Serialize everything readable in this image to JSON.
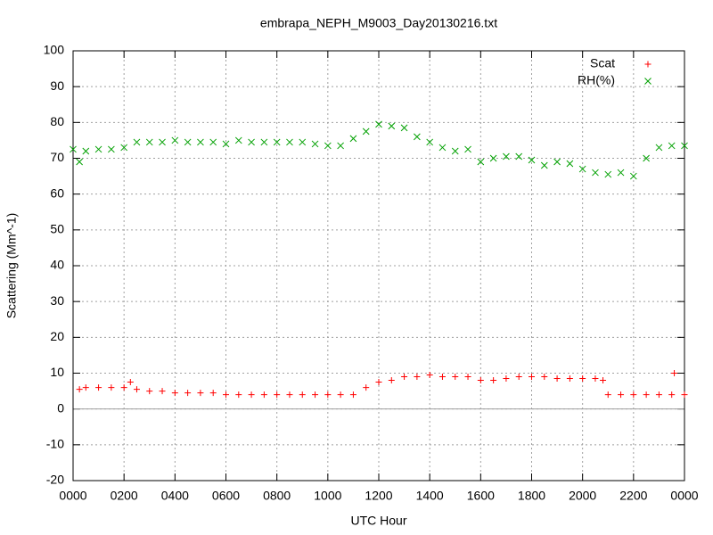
{
  "chart_data": {
    "type": "scatter",
    "title": "embrapa_NEPH_M9003_Day20130216.txt",
    "x_label": "UTC Hour",
    "y_label": "Scattering (Mm^-1)",
    "xlim": [
      0,
      24
    ],
    "xticks": [
      {
        "value": 0,
        "label": "0000"
      },
      {
        "value": 2,
        "label": "0200"
      },
      {
        "value": 4,
        "label": "0400"
      },
      {
        "value": 6,
        "label": "0600"
      },
      {
        "value": 8,
        "label": "0800"
      },
      {
        "value": 10,
        "label": "1000"
      },
      {
        "value": 12,
        "label": "1200"
      },
      {
        "value": 14,
        "label": "1400"
      },
      {
        "value": 16,
        "label": "1600"
      },
      {
        "value": 18,
        "label": "1800"
      },
      {
        "value": 20,
        "label": "2000"
      },
      {
        "value": 22,
        "label": "2200"
      },
      {
        "value": 24,
        "label": "0000"
      }
    ],
    "ylim": [
      -20,
      100
    ],
    "yticks": [
      -20,
      -10,
      0,
      10,
      20,
      30,
      40,
      50,
      60,
      70,
      80,
      90,
      100
    ],
    "grid": true,
    "legend": "top-right",
    "series": [
      {
        "name": "Scat",
        "color": "#ff0000",
        "marker": "plus",
        "x": [
          0.25,
          0.5,
          1,
          1.5,
          2,
          2.25,
          2.5,
          3,
          3.5,
          4,
          4.5,
          5,
          5.5,
          6,
          6.5,
          7,
          7.5,
          8,
          8.5,
          9,
          9.5,
          10,
          10.5,
          11,
          11.5,
          12,
          12.5,
          13,
          13.5,
          14,
          14.5,
          15,
          15.5,
          16,
          16.5,
          17,
          17.5,
          18,
          18.5,
          19,
          19.5,
          20,
          20.5,
          20.8,
          21,
          21.5,
          22,
          22.5,
          23,
          23.5,
          23.6,
          24
        ],
        "values": [
          5.5,
          6,
          6,
          6,
          6,
          7.5,
          5.5,
          5,
          5,
          4.5,
          4.5,
          4.5,
          4.5,
          4,
          4,
          4,
          4,
          4,
          4,
          4,
          4,
          4,
          4,
          4,
          6,
          7.5,
          8,
          9,
          9,
          9.5,
          9,
          9,
          9,
          8,
          8,
          8.5,
          9,
          9,
          9,
          8.5,
          8.5,
          8.5,
          8.5,
          8,
          4,
          4,
          4,
          4,
          4,
          4,
          10,
          4
        ]
      },
      {
        "name": "RH(%)",
        "color": "#00a000",
        "marker": "cross",
        "x": [
          0,
          0.25,
          0.5,
          1,
          1.5,
          2,
          2.5,
          3,
          3.5,
          4,
          4.5,
          5,
          5.5,
          6,
          6.5,
          7,
          7.5,
          8,
          8.5,
          9,
          9.5,
          10,
          10.5,
          11,
          11.5,
          12,
          12.5,
          13,
          13.5,
          14,
          14.5,
          15,
          15.5,
          16,
          16.5,
          17,
          17.5,
          18,
          18.5,
          19,
          19.5,
          20,
          20.5,
          21,
          21.5,
          22,
          22.5,
          23,
          23.5,
          24
        ],
        "values": [
          72.5,
          69,
          72,
          72.5,
          72.5,
          73,
          74.5,
          74.5,
          74.5,
          75,
          74.5,
          74.5,
          74.5,
          74,
          75,
          74.5,
          74.5,
          74.5,
          74.5,
          74.5,
          74,
          73.5,
          73.5,
          75.5,
          77.5,
          79.5,
          79,
          78.5,
          76,
          74.5,
          73,
          72,
          72.5,
          69,
          70,
          70.5,
          70.5,
          69.5,
          68,
          69,
          68.5,
          67,
          66,
          65.5,
          66,
          65,
          70,
          73,
          73.5,
          73.5
        ]
      }
    ]
  }
}
